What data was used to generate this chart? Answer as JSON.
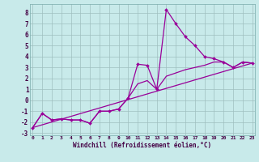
{
  "xlabel": "Windchill (Refroidissement éolien,°C)",
  "bg_color": "#c8eaea",
  "grid_color": "#9fbfbf",
  "line_color": "#990099",
  "x_data": [
    0,
    1,
    2,
    3,
    4,
    5,
    6,
    7,
    8,
    9,
    10,
    11,
    12,
    13,
    14,
    15,
    16,
    17,
    18,
    19,
    20,
    21,
    22,
    23
  ],
  "line1": [
    -2.5,
    -1.2,
    -1.8,
    -1.7,
    -1.8,
    -1.8,
    -2.1,
    -1.0,
    -1.0,
    -0.8,
    0.2,
    3.3,
    3.2,
    1.0,
    8.3,
    7.0,
    5.8,
    5.0,
    4.0,
    3.8,
    3.5,
    3.0,
    3.5,
    3.4
  ],
  "line2": [
    -2.5,
    -1.2,
    -1.8,
    -1.7,
    -1.8,
    -1.8,
    -2.1,
    -1.0,
    -1.0,
    -0.8,
    0.2,
    1.5,
    1.8,
    1.0,
    2.2,
    2.5,
    2.8,
    3.0,
    3.2,
    3.5,
    3.5,
    3.0,
    3.5,
    3.4
  ],
  "line3_x": [
    0,
    23
  ],
  "line3_y": [
    -2.5,
    3.4
  ],
  "ylim": [
    -3.2,
    8.8
  ],
  "xlim": [
    -0.3,
    23.3
  ],
  "yticks": [
    -3,
    -2,
    -1,
    0,
    1,
    2,
    3,
    4,
    5,
    6,
    7,
    8
  ],
  "xticks": [
    0,
    1,
    2,
    3,
    4,
    5,
    6,
    7,
    8,
    9,
    10,
    11,
    12,
    13,
    14,
    15,
    16,
    17,
    18,
    19,
    20,
    21,
    22,
    23
  ]
}
